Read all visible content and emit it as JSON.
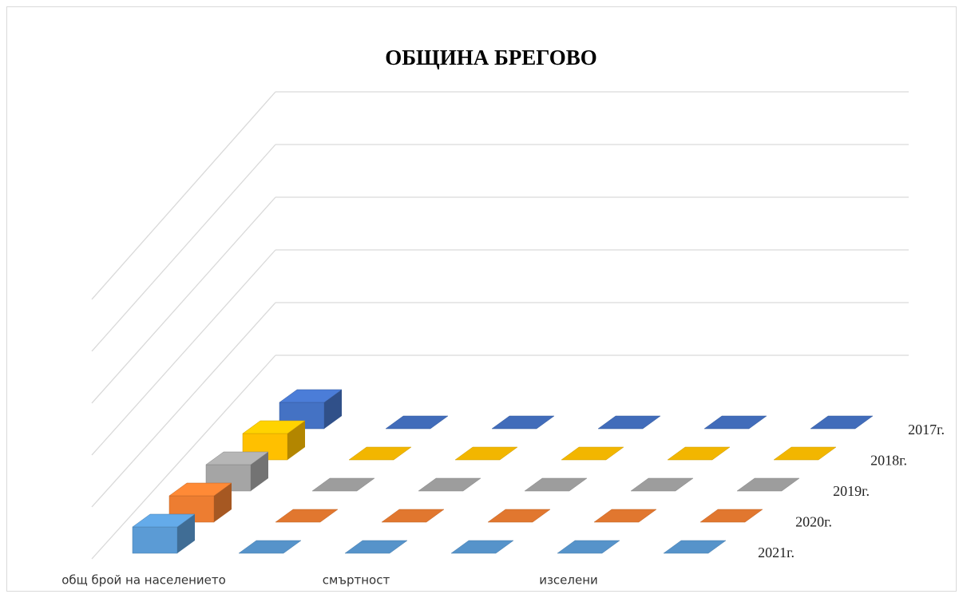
{
  "chart_data": {
    "type": "bar3d",
    "title": "ОБЩИНА БРЕГОВО",
    "categories": [
      "общ брой на населението",
      null,
      "смъртност",
      null,
      "изселени",
      null
    ],
    "series": [
      {
        "name": "2017г.",
        "color": "#4472c4",
        "values": [
          0.5,
          0,
          0,
          0,
          0,
          0
        ]
      },
      {
        "name": "2018г.",
        "color": "#ffc000",
        "values": [
          0.5,
          0,
          0,
          0,
          0,
          0
        ]
      },
      {
        "name": "2019г.",
        "color": "#a5a5a5",
        "values": [
          0.5,
          0,
          0,
          0,
          0,
          0
        ]
      },
      {
        "name": "2020г.",
        "color": "#ed7d31",
        "values": [
          0.5,
          0,
          0,
          0,
          0,
          0
        ]
      },
      {
        "name": "2021г.",
        "color": "#5b9bd5",
        "values": [
          0.5,
          0,
          0,
          0,
          0,
          0
        ]
      }
    ],
    "ylim": [
      0,
      5
    ],
    "yticks": [
      0,
      1,
      2,
      3,
      4,
      5
    ],
    "grid": true
  }
}
